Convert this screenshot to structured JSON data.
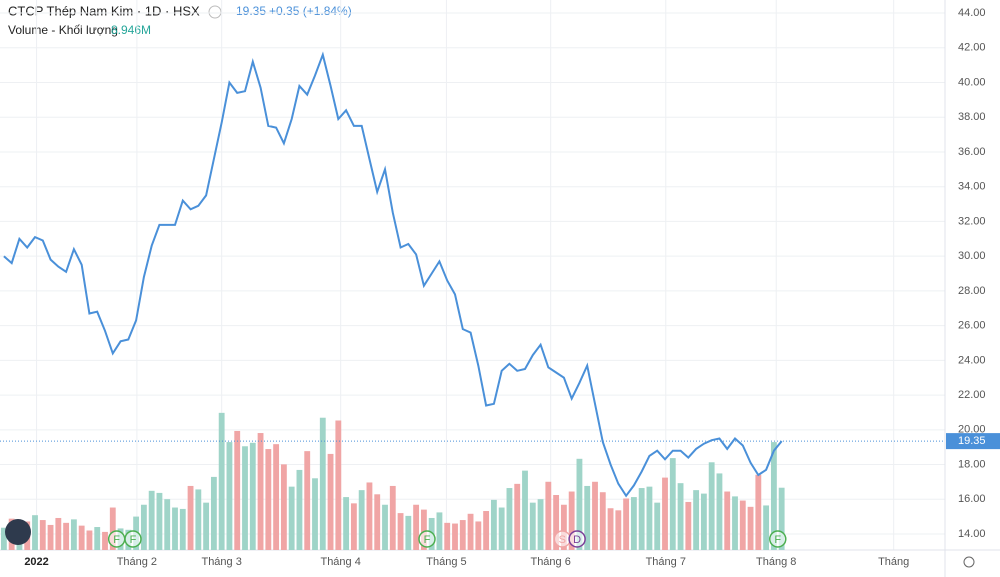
{
  "chart_data": {
    "type": "line",
    "title": "CTCP Thép Nam Kim · 1D · HSX",
    "last_price": "19.35",
    "change": "+0.35 (+1.84%)",
    "volume_title": "Volume - Khối lượng",
    "volume_last": "8.946M",
    "price_label": {
      "value": 19.35,
      "label": "19.35"
    },
    "color": "#4a90d9",
    "up_color": "#9fd4c8",
    "down_color": "#f0a5a5",
    "ylim": [
      13.08,
      44.75
    ],
    "xlim": [
      -0.5,
      121
    ],
    "yticks": [
      {
        "value": 14,
        "label": "14.00"
      },
      {
        "value": 16,
        "label": "16.00"
      },
      {
        "value": 18,
        "label": "18.00"
      },
      {
        "value": 20,
        "label": "20.00"
      },
      {
        "value": 22,
        "label": "22.00"
      },
      {
        "value": 24,
        "label": "24.00"
      },
      {
        "value": 26,
        "label": "26.00"
      },
      {
        "value": 28,
        "label": "28.00"
      },
      {
        "value": 30,
        "label": "30.00"
      },
      {
        "value": 32,
        "label": "32.00"
      },
      {
        "value": 34,
        "label": "34.00"
      },
      {
        "value": 36,
        "label": "36.00"
      },
      {
        "value": 38,
        "label": "38.00"
      },
      {
        "value": 40,
        "label": "40.00"
      },
      {
        "value": 42,
        "label": "42.00"
      },
      {
        "value": 44,
        "label": "44.00"
      }
    ],
    "xticks": [
      {
        "value": 4.2,
        "label": "2022"
      },
      {
        "value": 17.1,
        "label": "Tháng 2"
      },
      {
        "value": 28,
        "label": "Tháng 3"
      },
      {
        "value": 43.3,
        "label": "Tháng 4"
      },
      {
        "value": 56.9,
        "label": "Tháng 5"
      },
      {
        "value": 70.3,
        "label": "Tháng 6"
      },
      {
        "value": 85.1,
        "label": "Tháng 7"
      },
      {
        "value": 99.3,
        "label": "Tháng 8"
      },
      {
        "value": 114.4,
        "label": "Tháng"
      }
    ],
    "values": [
      30.0,
      29.6,
      31.0,
      30.5,
      31.1,
      30.9,
      29.8,
      29.4,
      29.1,
      30.4,
      29.5,
      26.7,
      26.8,
      25.7,
      24.4,
      25.1,
      25.2,
      26.3,
      28.8,
      30.6,
      31.8,
      31.8,
      31.8,
      33.2,
      32.7,
      32.9,
      33.5,
      35.6,
      37.7,
      40.0,
      39.4,
      39.5,
      41.2,
      39.7,
      37.5,
      37.4,
      36.5,
      37.9,
      39.8,
      39.3,
      40.4,
      41.6,
      39.8,
      37.9,
      38.4,
      37.5,
      37.5,
      35.6,
      33.7,
      35.0,
      32.5,
      30.5,
      30.7,
      30.1,
      28.3,
      29.0,
      29.7,
      28.6,
      27.8,
      25.8,
      25.6,
      23.7,
      21.4,
      21.5,
      23.4,
      23.8,
      23.4,
      23.5,
      24.3,
      24.9,
      23.6,
      23.3,
      23.0,
      21.8,
      22.7,
      23.7,
      21.5,
      19.3,
      18.0,
      16.9,
      16.2,
      16.8,
      17.6,
      18.5,
      18.8,
      18.3,
      18.8,
      18.8,
      18.4,
      18.9,
      19.2,
      19.4,
      19.5,
      18.9,
      19.5,
      19.1,
      18.1,
      17.4,
      17.7,
      18.8,
      19.35
    ],
    "vlim": [
      0,
      79
    ],
    "volumes": [
      3.2,
      4.5,
      3.8,
      4.1,
      5.0,
      4.3,
      3.6,
      4.6,
      3.9,
      4.4,
      3.5,
      2.8,
      3.3,
      2.6,
      6.1,
      3.1,
      2.9,
      4.8,
      6.5,
      8.5,
      8.2,
      7.3,
      6.1,
      5.9,
      9.2,
      8.7,
      6.8,
      10.5,
      19.7,
      15.5,
      17.1,
      14.9,
      15.4,
      16.8,
      14.5,
      15.2,
      12.3,
      9.1,
      11.5,
      14.2,
      10.3,
      19.0,
      13.8,
      18.6,
      7.6,
      6.7,
      8.6,
      9.7,
      8.0,
      6.5,
      9.2,
      5.3,
      4.9,
      6.5,
      5.8,
      4.6,
      5.4,
      3.9,
      3.8,
      4.3,
      5.2,
      4.1,
      5.6,
      7.2,
      6.1,
      8.9,
      9.5,
      11.4,
      6.8,
      7.3,
      9.8,
      7.9,
      6.5,
      8.4,
      13.1,
      9.2,
      9.8,
      8.3,
      6.0,
      5.7,
      7.4,
      7.6,
      8.9,
      9.1,
      6.8,
      10.4,
      13.2,
      9.6,
      6.9,
      8.6,
      8.1,
      12.6,
      11.0,
      8.4,
      7.7,
      7.1,
      6.2,
      10.8,
      6.4,
      15.5,
      8.946
    ],
    "events": [
      {
        "label": "F",
        "x": 14.5
      },
      {
        "label": "F",
        "x": 16.6
      },
      {
        "label": "F",
        "x": 54.4
      },
      {
        "label": "S",
        "x": 71.8
      },
      {
        "label": "D",
        "x": 73.7
      },
      {
        "label": "F",
        "x": 99.5
      }
    ]
  }
}
